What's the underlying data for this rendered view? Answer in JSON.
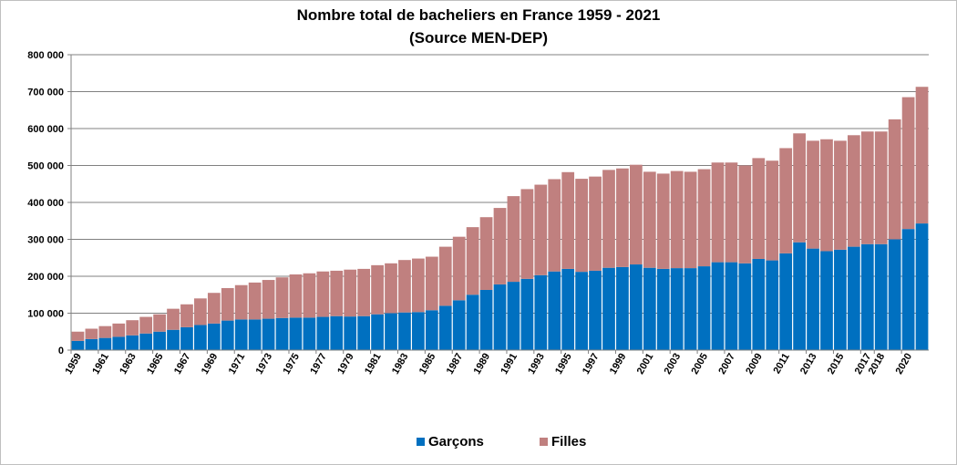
{
  "chart_data": {
    "type": "bar",
    "stacked": true,
    "title": "Nombre total de bacheliers  en France 1959 - 2021",
    "subtitle": "(Source MEN-DEP)",
    "xlabel": "",
    "ylabel": "",
    "ylim": [
      0,
      800000
    ],
    "yticks": [
      "0",
      "100 000",
      "200 000",
      "300 000",
      "400 000",
      "500 000",
      "600 000",
      "700 000",
      "800 000"
    ],
    "x_tick_labels": [
      "1959",
      "1961",
      "1963",
      "1965",
      "1967",
      "1969",
      "1971",
      "1973",
      "1975",
      "1977",
      "1979",
      "1981",
      "1983",
      "1985",
      "1987",
      "1989",
      "1991",
      "1993",
      "1995",
      "1997",
      "1999",
      "2001",
      "2003",
      "2005",
      "2007",
      "2009",
      "2011",
      "2013",
      "2015",
      "2017",
      "2018",
      "2020"
    ],
    "grid": true,
    "legend_position": "bottom",
    "categories": [
      "1959",
      "1960",
      "1961",
      "1962",
      "1963",
      "1964",
      "1965",
      "1966",
      "1967",
      "1968",
      "1969",
      "1970",
      "1971",
      "1972",
      "1973",
      "1974",
      "1975",
      "1976",
      "1977",
      "1978",
      "1979",
      "1980",
      "1981",
      "1982",
      "1983",
      "1984",
      "1985",
      "1986",
      "1987",
      "1988",
      "1989",
      "1990",
      "1991",
      "1992",
      "1993",
      "1994",
      "1995",
      "1996",
      "1997",
      "1998",
      "1999",
      "2000",
      "2001",
      "2002",
      "2003",
      "2004",
      "2005",
      "2006",
      "2007",
      "2008",
      "2009",
      "2010",
      "2011",
      "2012",
      "2013",
      "2014",
      "2015",
      "2016",
      "2017",
      "2018",
      "2019",
      "2020",
      "2021"
    ],
    "series": [
      {
        "name": "Garçons",
        "color": "#0070c0",
        "values": [
          25000,
          30000,
          33000,
          36000,
          40000,
          45000,
          50000,
          55000,
          62000,
          68000,
          72000,
          80000,
          83000,
          83000,
          85000,
          87000,
          88000,
          88000,
          90000,
          92000,
          91000,
          92000,
          97000,
          100000,
          102000,
          103000,
          108000,
          120000,
          135000,
          150000,
          163000,
          178000,
          185000,
          193000,
          203000,
          213000,
          220000,
          212000,
          215000,
          223000,
          225000,
          232000,
          223000,
          220000,
          222000,
          222000,
          227000,
          238000,
          238000,
          235000,
          247000,
          243000,
          262000,
          292000,
          275000,
          268000,
          272000,
          280000,
          287000,
          287000,
          300000,
          328000,
          343000
        ]
      },
      {
        "name": "Filles",
        "color": "#c0807f",
        "values": [
          25000,
          28000,
          32000,
          36000,
          41000,
          45000,
          47000,
          57000,
          62000,
          72000,
          83000,
          88000,
          93000,
          100000,
          105000,
          110000,
          117000,
          120000,
          123000,
          123000,
          127000,
          128000,
          133000,
          135000,
          142000,
          145000,
          145000,
          160000,
          172000,
          183000,
          197000,
          207000,
          232000,
          243000,
          245000,
          250000,
          262000,
          252000,
          255000,
          265000,
          267000,
          270000,
          260000,
          258000,
          263000,
          261000,
          263000,
          270000,
          270000,
          265000,
          273000,
          270000,
          285000,
          295000,
          292000,
          303000,
          295000,
          302000,
          305000,
          305000,
          325000,
          357000,
          370000
        ]
      }
    ]
  }
}
